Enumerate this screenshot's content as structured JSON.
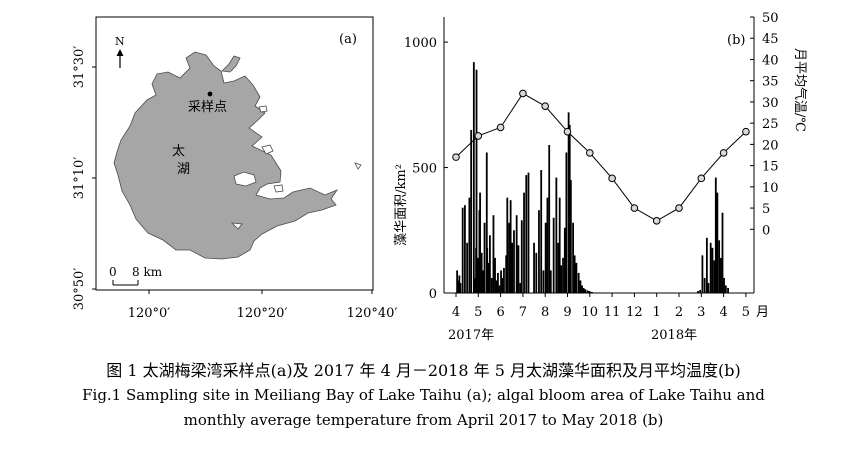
{
  "panel_a": {
    "label": "(a)",
    "north": "N",
    "site_label": "采样点",
    "lake_label_1": "太",
    "lake_label_2": "湖",
    "scale_zero": "0",
    "scale_label": "8 km",
    "lon_ticks": [
      "120°0′",
      "120°20′",
      "120°40′"
    ],
    "lat_ticks": [
      "31°30′",
      "31°10′",
      "30°50′"
    ]
  },
  "chart_data": {
    "type": "bar",
    "label": "(b)",
    "ylabel_left": "藻华面积/km²",
    "ylabel_right": "月平均气温/℃",
    "ylim_left": [
      0,
      1100
    ],
    "yticks_left": [
      "0",
      "500",
      "1000"
    ],
    "ylim_right": [
      -15,
      50
    ],
    "yticks_right": [
      "0",
      "5",
      "10",
      "15",
      "20",
      "25",
      "30",
      "35",
      "40",
      "45",
      "50"
    ],
    "month_ticks": [
      "4",
      "5",
      "6",
      "7",
      "8",
      "9",
      "10",
      "11",
      "12",
      "1",
      "2",
      "3",
      "4",
      "5"
    ],
    "month_unit": "月",
    "year_labels": [
      "2017年",
      "2018年"
    ],
    "temperature": {
      "months": [
        "4",
        "5",
        "6",
        "7",
        "8",
        "9",
        "10",
        "11",
        "12",
        "1",
        "2",
        "3",
        "4",
        "5"
      ],
      "values": [
        17,
        22,
        24,
        32,
        29,
        23,
        18,
        12,
        5,
        2,
        5,
        12,
        18,
        23
      ]
    },
    "bloom": {
      "month_index": [
        0.05,
        0.1,
        0.15,
        0.2,
        0.3,
        0.4,
        0.5,
        0.6,
        0.68,
        0.8,
        0.85,
        0.9,
        0.92,
        0.97,
        1.05,
        1.08,
        1.15,
        1.22,
        1.28,
        1.38,
        1.4,
        1.45,
        1.52,
        1.6,
        1.68,
        1.75,
        1.82,
        1.88,
        1.95,
        2.02,
        2.08,
        2.15,
        2.25,
        2.3,
        2.38,
        2.45,
        2.52,
        2.6,
        2.72,
        2.8,
        2.88,
        2.95,
        3.05,
        3.15,
        3.25,
        3.5,
        3.6,
        3.72,
        3.82,
        3.92,
        4.02,
        4.1,
        4.18,
        4.25,
        4.38,
        4.5,
        4.58,
        4.65,
        4.72,
        4.8,
        4.88,
        4.95,
        5.05,
        5.1,
        5.15,
        5.25,
        5.32,
        5.4,
        5.5,
        5.58,
        5.65,
        5.72,
        5.8,
        5.9,
        5.95,
        6.02,
        6.1,
        10.85,
        10.95,
        11.05,
        11.15,
        11.25,
        11.32,
        11.42,
        11.5,
        11.58,
        11.65,
        11.72,
        11.8,
        11.88,
        11.95,
        12.02,
        12.1,
        12.2
      ],
      "values": [
        90,
        50,
        70,
        40,
        340,
        350,
        200,
        380,
        650,
        920,
        60,
        180,
        890,
        140,
        330,
        400,
        160,
        90,
        280,
        560,
        180,
        120,
        230,
        60,
        310,
        140,
        50,
        80,
        30,
        90,
        60,
        100,
        150,
        380,
        280,
        370,
        200,
        250,
        310,
        190,
        40,
        290,
        400,
        470,
        480,
        200,
        160,
        330,
        490,
        90,
        280,
        380,
        590,
        90,
        300,
        460,
        200,
        380,
        110,
        140,
        260,
        560,
        720,
        670,
        450,
        280,
        150,
        120,
        80,
        50,
        30,
        20,
        15,
        10,
        8,
        6,
        4,
        8,
        12,
        150,
        60,
        220,
        40,
        200,
        180,
        130,
        460,
        400,
        210,
        140,
        320,
        60,
        30,
        20
      ]
    }
  },
  "caption": {
    "zh": "图 1 太湖梅梁湾采样点(a)及 2017 年 4 月－2018 年 5 月太湖藻华面积及月平均温度(b)",
    "en_line1": "Fig.1 Sampling site in Meiliang Bay of Lake Taihu (a); algal bloom area of Lake Taihu and",
    "en_line2": "monthly average temperature from April 2017 to May 2018 (b)"
  },
  "colors": {
    "lake_fill": "#a6a6a6",
    "bar": "#000000",
    "line": "#000000",
    "marker_fill": "#d9d9d9"
  }
}
